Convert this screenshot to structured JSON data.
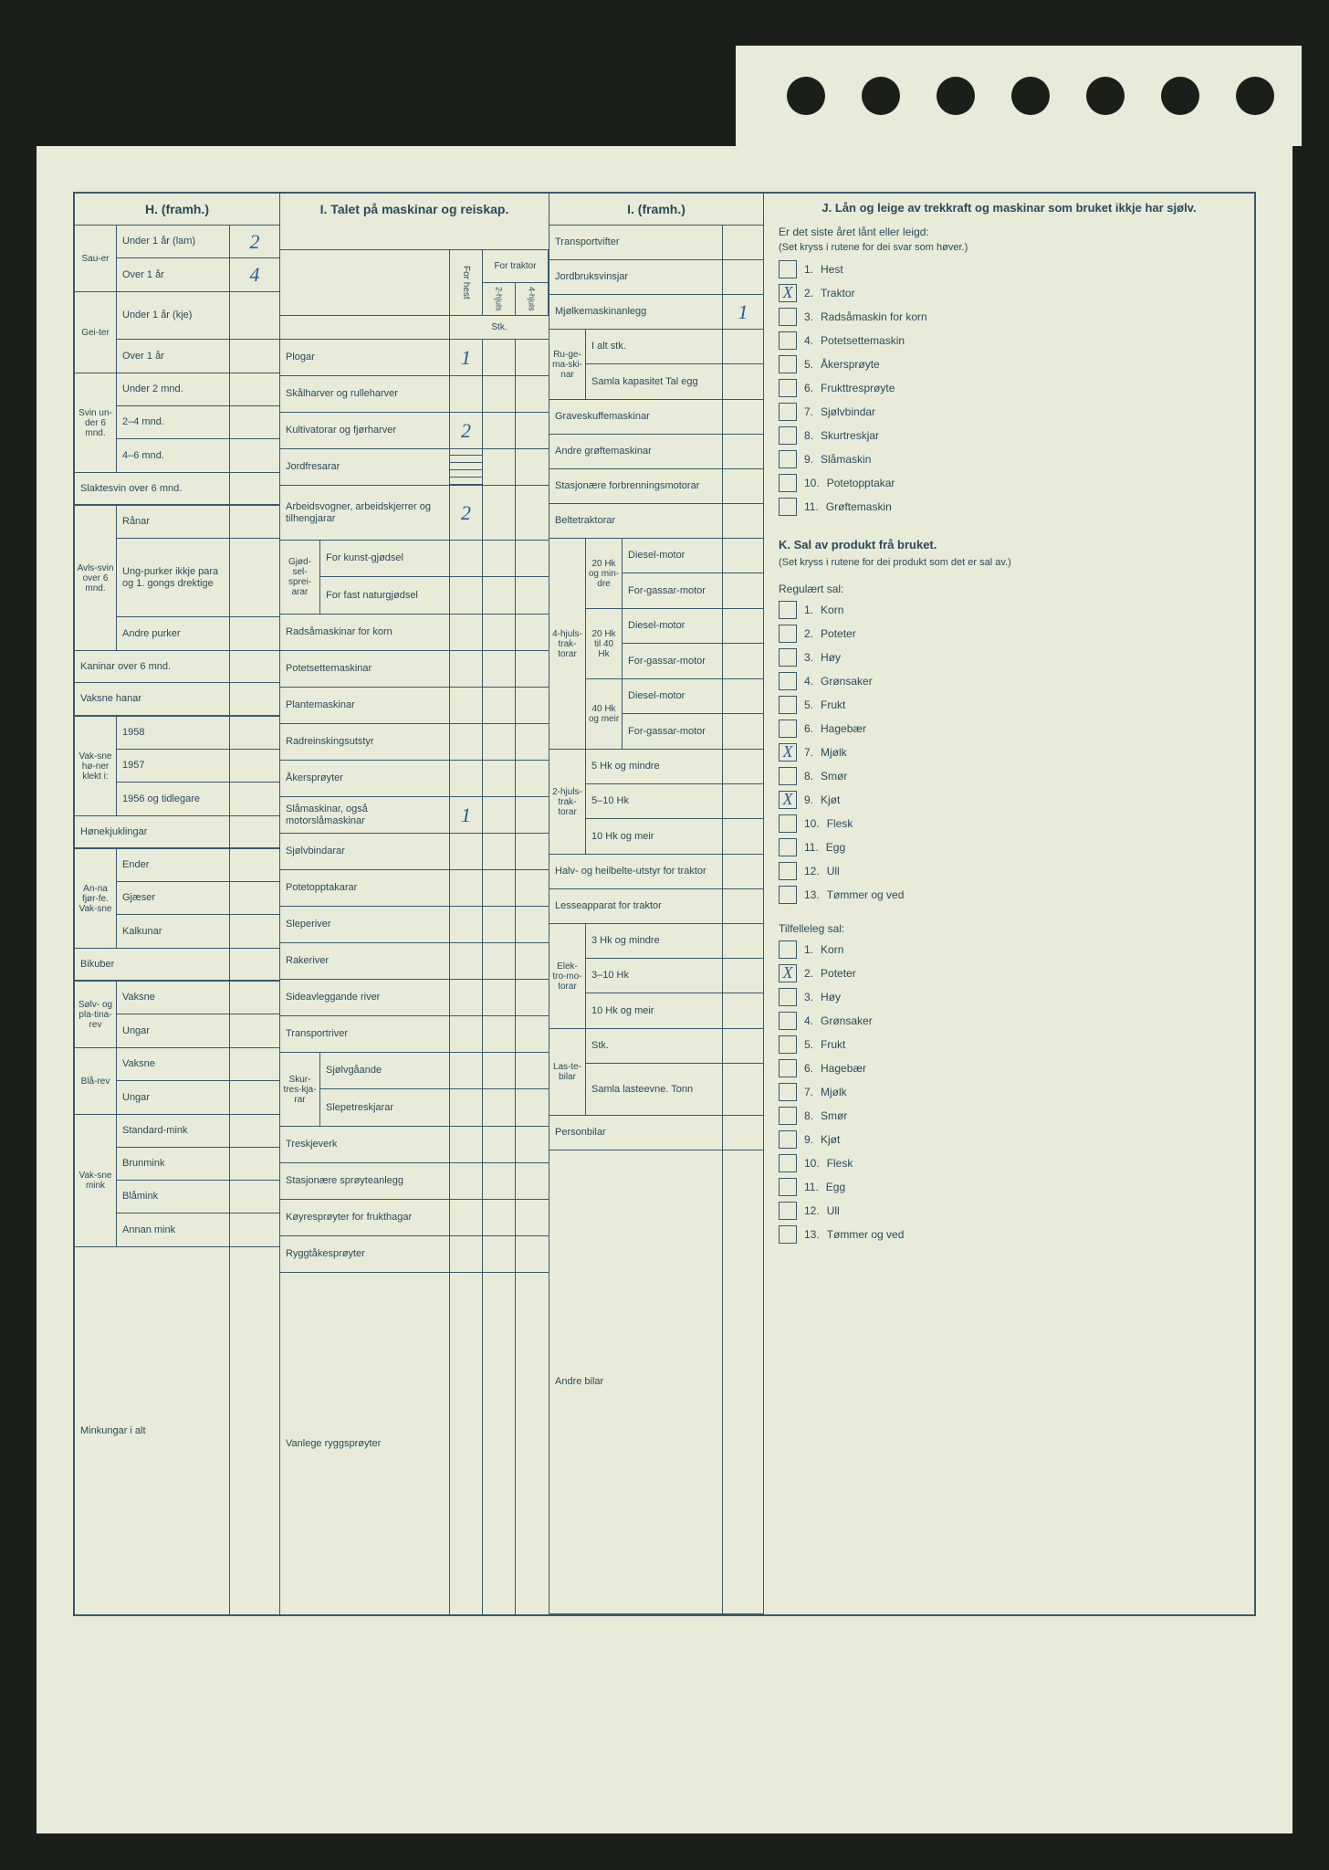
{
  "colors": {
    "ink": "#2a4a5a",
    "paper": "#e8ebd8",
    "hand": "#2a5a9a"
  },
  "H": {
    "title": "H. (framh.)",
    "sauer": {
      "label": "Sau-er",
      "under1": "Under 1 år (lam)",
      "under1_val": "2",
      "over1": "Over 1 år",
      "over1_val": "4"
    },
    "geiter": {
      "label": "Gei-ter",
      "under1": "Under 1 år (kje)",
      "over1": "Over 1 år"
    },
    "svin6": {
      "label": "Svin un-der 6 mnd.",
      "r1": "Under 2 mnd.",
      "r2": "2–4 mnd.",
      "r3": "4–6 mnd."
    },
    "slaktesvin": "Slaktesvin over 6 mnd.",
    "avlssvin": {
      "label": "Avls-svin over 6 mnd.",
      "r1": "Rånar",
      "r2": "Ung-purker ikkje para og 1. gongs drektige",
      "r3": "Andre purker"
    },
    "kaninar": "Kaninar over 6 mnd.",
    "vaksnehanar": "Vaksne hanar",
    "honer": {
      "label": "Vak-sne hø-ner klekt i:",
      "r1": "1958",
      "r2": "1957",
      "r3": "1956 og tidlegare"
    },
    "honekjuklingar": "Hønekjuklingar",
    "annafj": {
      "label": "An-na fjør-fe. Vak-sne",
      "r1": "Ender",
      "r2": "Gjæser",
      "r3": "Kalkunar"
    },
    "bikuber": "Bikuber",
    "solvrev": {
      "label": "Sølv- og pla-tina-rev",
      "r1": "Vaksne",
      "r2": "Ungar"
    },
    "blarev": {
      "label": "Blå-rev",
      "r1": "Vaksne",
      "r2": "Ungar"
    },
    "mink": {
      "label": "Vak-sne mink",
      "r1": "Standard-mink",
      "r2": "Brunmink",
      "r3": "Blåmink",
      "r4": "Annan mink"
    },
    "minkungar": "Minkungar i alt"
  },
  "I": {
    "title": "I. Talet på maskinar og reiskap.",
    "colheads": {
      "forhest": "For hest",
      "fortraktor": "For traktor",
      "h2": "2-hjuls",
      "h4": "4-hjuls",
      "stk": "Stk."
    },
    "rows": {
      "plogar": {
        "label": "Plogar",
        "v1": "1"
      },
      "skalharver": "Skålharver og rulleharver",
      "kultivatorar": {
        "label": "Kultivatorar og fjørharver",
        "v1": "2"
      },
      "jordfresarar": "Jordfresarar",
      "arbeidsvogner": {
        "label": "Arbeidsvogner, arbeidskjerrer og tilhengjarar",
        "v1": "2"
      },
      "gjodsel": {
        "label": "Gjød-sel-sprei-arar",
        "r1": "For kunst-gjødsel",
        "r2": "For fast naturgjødsel"
      },
      "radsamaskinar": "Radsåmaskinar for korn",
      "potetsettemaskinar": "Potetsettemaskinar",
      "plantemaskinar": "Plantemaskinar",
      "radreinsking": "Radreinskingsutstyr",
      "akersproyter": "Åkersprøyter",
      "slamaskinar": {
        "label": "Slåmaskinar, også motorslåmaskinar",
        "v1": "1"
      },
      "sjolvbindarar": "Sjølvbindarar",
      "potetopptakarar": "Potetopptakarar",
      "sleperiver": "Sleperiver",
      "rakeriver": "Rakeriver",
      "sideavleggande": "Sideavleggande river",
      "transportriver": "Transportriver",
      "skurtreskjarar": {
        "label": "Skur-tres-kja-rar",
        "r1": "Sjølvgåande",
        "r2": "Slepetreskjarar"
      },
      "treskjeverk": "Treskjeverk",
      "stasjonaere_sproyte": "Stasjonære sprøyteanlegg",
      "koyresproyter": "Køyresprøyter for frukthagar",
      "ryggtakesproyter": "Ryggtåkesprøyter",
      "vanlege": "Vanlege ryggsprøyter"
    }
  },
  "Ic": {
    "title": "I. (framh.)",
    "transportvifter": "Transportvifter",
    "jordbruksvinsjar": "Jordbruksvinsjar",
    "mjolkemaskin": {
      "label": "Mjølkemaskinanlegg",
      "v": "1"
    },
    "rugemaskinar": {
      "label": "Ru-ge-ma-ski-nar",
      "r1": "I alt stk.",
      "r2": "Samla kapasitet Tal egg"
    },
    "graveskuffe": "Graveskuffemaskinar",
    "andre_grofte": "Andre grøftemaskinar",
    "stasjonaere_forbr": "Stasjonære forbrenningsmotorar",
    "beltetraktorar": "Beltetraktorar",
    "hjuls4": {
      "label": "4-hjuls-trak-torar",
      "g1": "20 Hk og min-dre",
      "g2": "20 Hk til 40 Hk",
      "g3": "40 Hk og meir",
      "diesel": "Diesel-motor",
      "forgassar": "For-gassar-motor"
    },
    "hjuls2": {
      "label": "2-hjuls-trak-torar",
      "r1": "5 Hk og mindre",
      "r2": "5–10 Hk",
      "r3": "10 Hk og meir"
    },
    "halvbelte": "Halv- og heilbelte-utstyr for traktor",
    "lesseapparat": "Lesseapparat for traktor",
    "elektro": {
      "label": "Elek-tro-mo-torar",
      "r1": "3 Hk og mindre",
      "r2": "3–10 Hk",
      "r3": "10 Hk og meir"
    },
    "lastebilar": {
      "label": "Las-te-bilar",
      "r1": "Stk.",
      "r2": "Samla lasteevne. Tonn"
    },
    "personbilar": "Personbilar",
    "andrebilar": "Andre bilar"
  },
  "J": {
    "title": "J. Lån og leige av trekkraft og maskinar som bruket ikkje har sjølv.",
    "sub": "Er det siste året lånt eller leigd:",
    "note": "(Set kryss i rutene for dei svar som høver.)",
    "items": [
      {
        "n": "1.",
        "t": "Hest",
        "x": ""
      },
      {
        "n": "2.",
        "t": "Traktor",
        "x": "X"
      },
      {
        "n": "3.",
        "t": "Radsåmaskin for korn",
        "x": ""
      },
      {
        "n": "4.",
        "t": "Potetsettemaskin",
        "x": ""
      },
      {
        "n": "5.",
        "t": "Åkersprøyte",
        "x": ""
      },
      {
        "n": "6.",
        "t": "Frukttresprøyte",
        "x": ""
      },
      {
        "n": "7.",
        "t": "Sjølvbindar",
        "x": ""
      },
      {
        "n": "8.",
        "t": "Skurtreskjar",
        "x": ""
      },
      {
        "n": "9.",
        "t": "Slåmaskin",
        "x": ""
      },
      {
        "n": "10.",
        "t": "Potetopptakar",
        "x": ""
      },
      {
        "n": "11.",
        "t": "Grøftemaskin",
        "x": ""
      }
    ]
  },
  "K": {
    "title": "K. Sal av produkt frå bruket.",
    "note": "(Set kryss i rutene for dei produkt som det er sal av.)",
    "reg_header": "Regulært sal:",
    "reg": [
      {
        "n": "1.",
        "t": "Korn",
        "x": ""
      },
      {
        "n": "2.",
        "t": "Poteter",
        "x": ""
      },
      {
        "n": "3.",
        "t": "Høy",
        "x": ""
      },
      {
        "n": "4.",
        "t": "Grønsaker",
        "x": ""
      },
      {
        "n": "5.",
        "t": "Frukt",
        "x": ""
      },
      {
        "n": "6.",
        "t": "Hagebær",
        "x": ""
      },
      {
        "n": "7.",
        "t": "Mjølk",
        "x": "X"
      },
      {
        "n": "8.",
        "t": "Smør",
        "x": ""
      },
      {
        "n": "9.",
        "t": "Kjøt",
        "x": "X"
      },
      {
        "n": "10.",
        "t": "Flesk",
        "x": ""
      },
      {
        "n": "11.",
        "t": "Egg",
        "x": ""
      },
      {
        "n": "12.",
        "t": "Ull",
        "x": ""
      },
      {
        "n": "13.",
        "t": "Tømmer og ved",
        "x": ""
      }
    ],
    "tilf_header": "Tilfelleleg sal:",
    "tilf": [
      {
        "n": "1.",
        "t": "Korn",
        "x": ""
      },
      {
        "n": "2.",
        "t": "Poteter",
        "x": "X"
      },
      {
        "n": "3.",
        "t": "Høy",
        "x": ""
      },
      {
        "n": "4.",
        "t": "Grønsaker",
        "x": ""
      },
      {
        "n": "5.",
        "t": "Frukt",
        "x": ""
      },
      {
        "n": "6.",
        "t": "Hagebær",
        "x": ""
      },
      {
        "n": "7.",
        "t": "Mjølk",
        "x": ""
      },
      {
        "n": "8.",
        "t": "Smør",
        "x": ""
      },
      {
        "n": "9.",
        "t": "Kjøt",
        "x": ""
      },
      {
        "n": "10.",
        "t": "Flesk",
        "x": ""
      },
      {
        "n": "11.",
        "t": "Egg",
        "x": ""
      },
      {
        "n": "12.",
        "t": "Ull",
        "x": ""
      },
      {
        "n": "13.",
        "t": "Tømmer og ved",
        "x": ""
      }
    ]
  }
}
